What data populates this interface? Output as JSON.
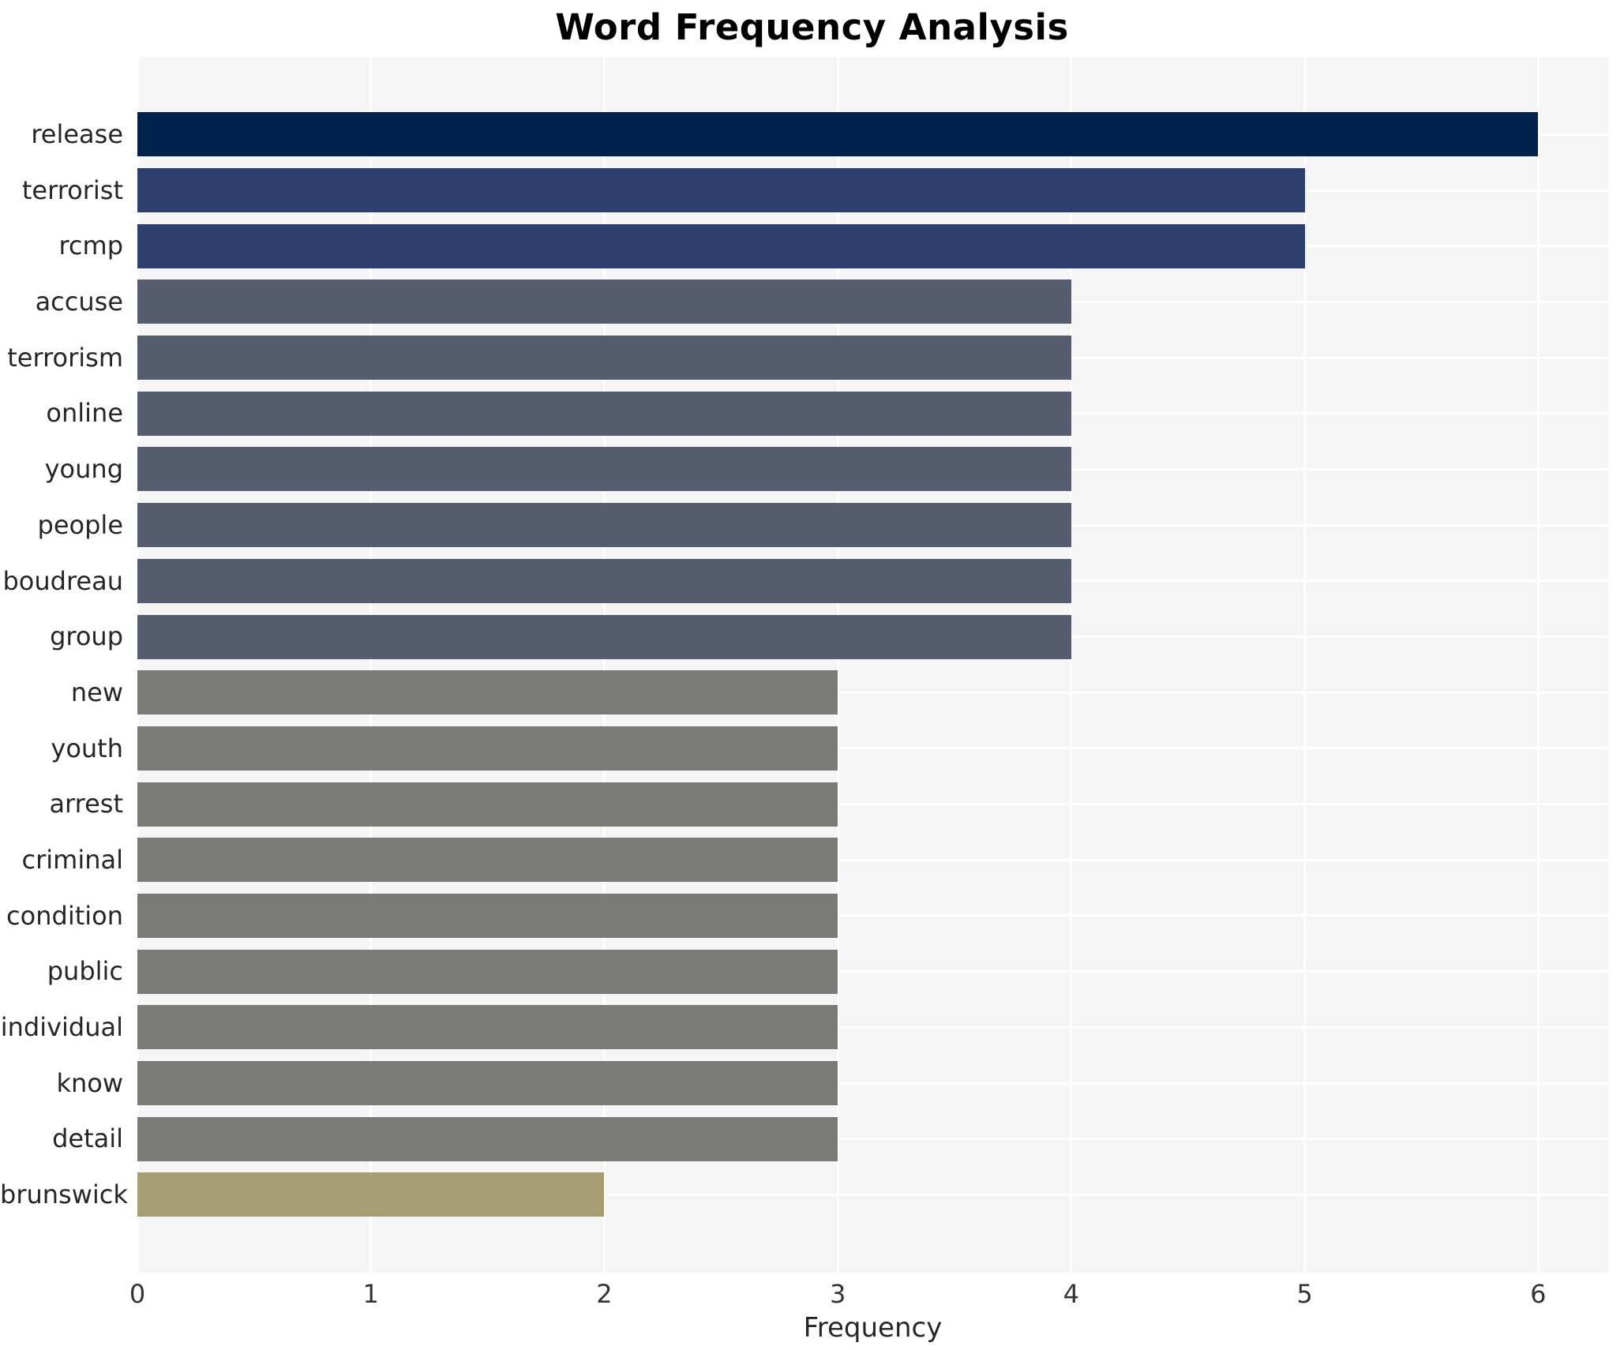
{
  "figure": {
    "background": "#ffffff",
    "plot_background": "#f5f5f6",
    "gridline_color": "#ffffff",
    "text_color": "#262626"
  },
  "chart_data": {
    "type": "bar",
    "orientation": "horizontal",
    "title": "Word Frequency Analysis",
    "xlabel": "Frequency",
    "ylabel": "",
    "xlim": [
      0,
      6.3
    ],
    "x_ticks": [
      0,
      1,
      2,
      3,
      4,
      5,
      6
    ],
    "grid": true,
    "legend": false,
    "categories": [
      "release",
      "terrorist",
      "rcmp",
      "accuse",
      "terrorism",
      "online",
      "young",
      "people",
      "boudreau",
      "group",
      "new",
      "youth",
      "arrest",
      "criminal",
      "condition",
      "public",
      "individual",
      "know",
      "detail",
      "brunswick"
    ],
    "values": [
      6,
      5,
      5,
      4,
      4,
      4,
      4,
      4,
      4,
      4,
      3,
      3,
      3,
      3,
      3,
      3,
      3,
      3,
      3,
      2
    ],
    "bar_colors": [
      "#00224d",
      "#2d3f6d",
      "#2d3f6d",
      "#555c6e",
      "#555c6e",
      "#555c6e",
      "#555c6e",
      "#555c6e",
      "#555c6e",
      "#555c6e",
      "#7a7a76",
      "#7a7a76",
      "#7a7a76",
      "#7a7a76",
      "#7a7a76",
      "#7a7a76",
      "#7a7a76",
      "#7a7a76",
      "#7a7a76",
      "#a79d72"
    ]
  }
}
